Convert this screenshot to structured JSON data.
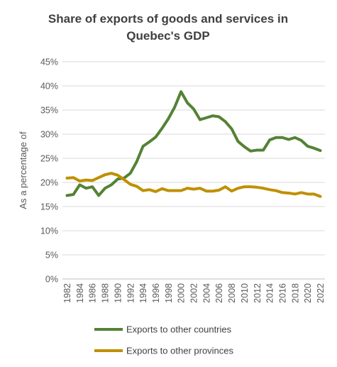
{
  "chart_data": {
    "type": "line",
    "title_line1": "Share of exports of goods and services in",
    "title_line2": "Quebec's GDP",
    "xlabel": "",
    "ylabel": "As a percentage of",
    "ylim": [
      0,
      45
    ],
    "y_ticks": [
      "0%",
      "5%",
      "10%",
      "15%",
      "20%",
      "25%",
      "30%",
      "35%",
      "40%",
      "45%"
    ],
    "y_tick_values": [
      0,
      5,
      10,
      15,
      20,
      25,
      30,
      35,
      40,
      45
    ],
    "x": [
      1982,
      1983,
      1984,
      1985,
      1986,
      1987,
      1988,
      1989,
      1990,
      1991,
      1992,
      1993,
      1994,
      1995,
      1996,
      1997,
      1998,
      1999,
      2000,
      2001,
      2002,
      2003,
      2004,
      2005,
      2006,
      2007,
      2008,
      2009,
      2010,
      2011,
      2012,
      2013,
      2014,
      2015,
      2016,
      2017,
      2018,
      2019,
      2020,
      2021,
      2022
    ],
    "x_tick_labels": [
      "1982",
      "1984",
      "1986",
      "1988",
      "1990",
      "1992",
      "1994",
      "1996",
      "1998",
      "2000",
      "2002",
      "2004",
      "2006",
      "2008",
      "2010",
      "2012",
      "2014",
      "2016",
      "2018",
      "2020",
      "2022"
    ],
    "grid": true,
    "legend_position": "bottom",
    "series": [
      {
        "name": "Exports to other countries",
        "color": "#548235",
        "values": [
          17.3,
          17.5,
          19.5,
          18.8,
          19.1,
          17.3,
          18.8,
          19.5,
          20.7,
          20.9,
          21.9,
          24.3,
          27.5,
          28.4,
          29.4,
          31.2,
          33.2,
          35.6,
          38.8,
          36.5,
          35.2,
          33.0,
          33.4,
          33.8,
          33.6,
          32.6,
          31.1,
          28.5,
          27.4,
          26.5,
          26.7,
          26.7,
          28.8,
          29.3,
          29.3,
          28.9,
          29.3,
          28.7,
          27.5,
          27.1,
          26.6
        ]
      },
      {
        "name": "Exports to other provinces",
        "color": "#BF9000",
        "values": [
          20.9,
          21.0,
          20.3,
          20.5,
          20.4,
          21.0,
          21.6,
          21.9,
          21.5,
          20.6,
          19.6,
          19.2,
          18.3,
          18.5,
          18.1,
          18.7,
          18.3,
          18.3,
          18.3,
          18.8,
          18.6,
          18.8,
          18.2,
          18.2,
          18.4,
          19.1,
          18.2,
          18.8,
          19.1,
          19.1,
          19.0,
          18.8,
          18.5,
          18.3,
          17.9,
          17.8,
          17.6,
          17.9,
          17.6,
          17.6,
          17.1
        ]
      }
    ]
  }
}
